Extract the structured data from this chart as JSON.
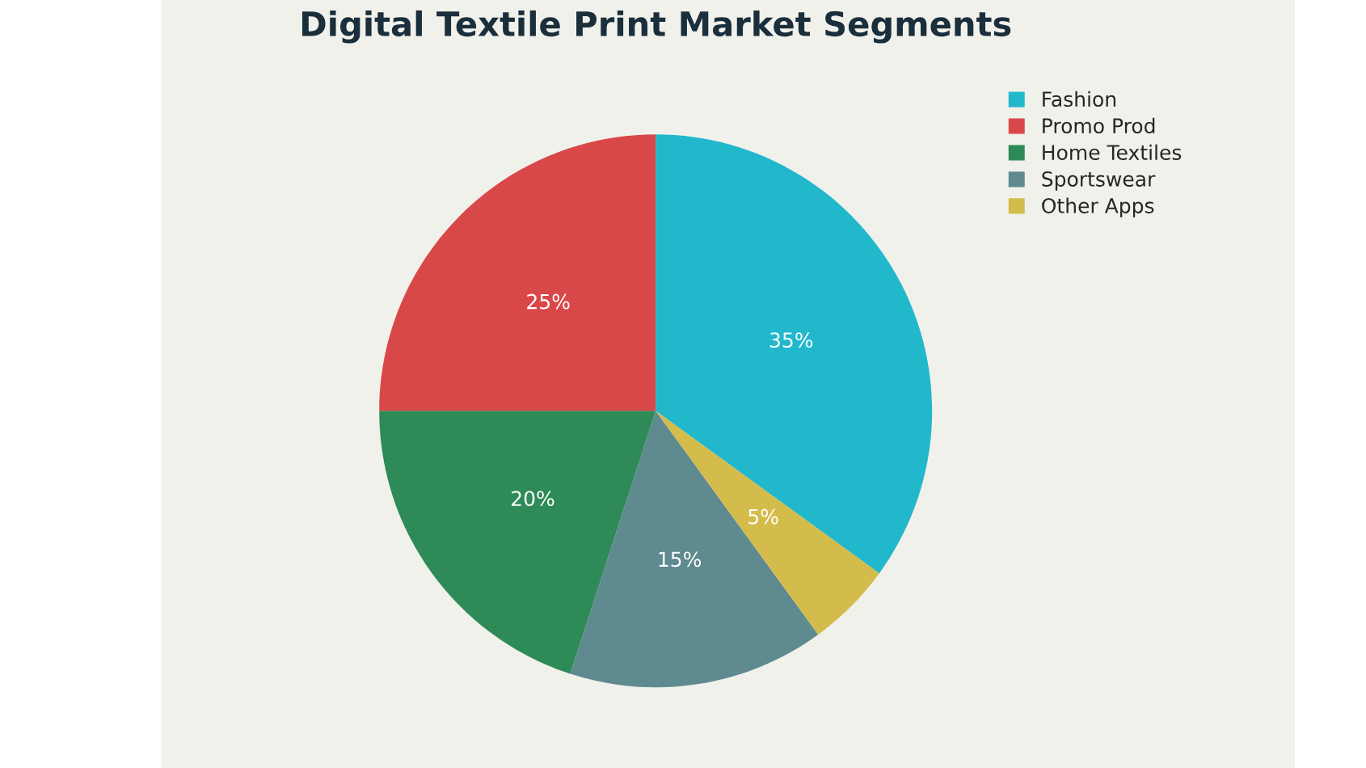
{
  "chart_data": {
    "type": "pie",
    "title": "Digital Textile Print Market Segments",
    "categories": [
      "Fashion",
      "Promo Prod",
      "Home Textiles",
      "Sportswear",
      "Other Apps"
    ],
    "values": [
      35,
      25,
      20,
      15,
      5
    ],
    "colors": [
      "#22b8cc",
      "#d94848",
      "#2e8b57",
      "#5f8a8f",
      "#d4bc4c"
    ],
    "value_labels": [
      "35%",
      "25%",
      "20%",
      "15%",
      "5%"
    ],
    "legend": "top right"
  }
}
